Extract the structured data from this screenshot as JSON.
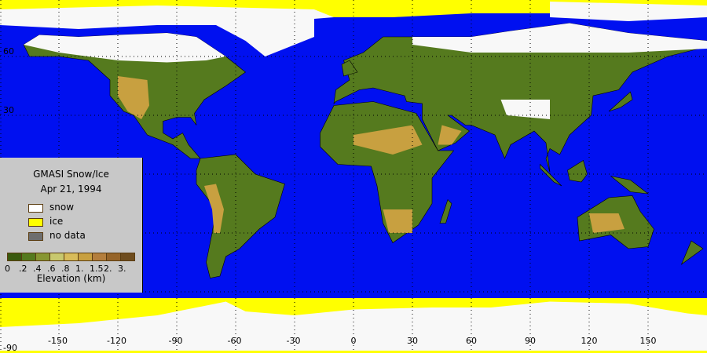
{
  "legend": {
    "title": "GMASI Snow/Ice",
    "date": "Apr 21, 1994",
    "items": [
      {
        "label": "snow",
        "color": "#ffffff"
      },
      {
        "label": "ice",
        "color": "#ffff00"
      },
      {
        "label": "no data",
        "color": "#6e6e6e"
      }
    ],
    "colorbar": {
      "labels": [
        "0",
        ".2",
        ".4",
        ".6",
        ".8",
        "1.",
        "1.5",
        "2.",
        "3."
      ],
      "colors": [
        "#3a5a0e",
        "#557a1e",
        "#879632",
        "#c8c86e",
        "#d8bc5a",
        "#c8a040",
        "#b47e3c",
        "#966428",
        "#6e4c1e"
      ],
      "axis_label": "Elevation (km)"
    }
  },
  "axes": {
    "lon_ticks": [
      "-150",
      "-120",
      "-90",
      "-60",
      "-30",
      "0",
      "30",
      "60",
      "90",
      "120",
      "150"
    ],
    "lat_ticks": [
      "60",
      "30",
      "-90"
    ]
  },
  "colors": {
    "ocean": "#0010f0",
    "snow": "#f8f8f8",
    "ice": "#ffff00",
    "land_low": "#557a1e",
    "land_high": "#c8a040"
  }
}
